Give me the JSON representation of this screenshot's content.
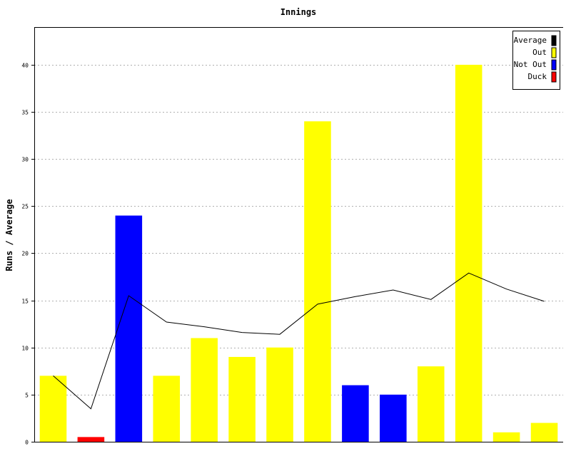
{
  "chart_data": {
    "type": "bar",
    "title": "Innings",
    "xlabel": "",
    "ylabel": "Runs / Average",
    "ylim": [
      0,
      44
    ],
    "yticks": [
      0,
      5,
      10,
      15,
      20,
      25,
      30,
      35,
      40
    ],
    "grid": true,
    "legend_position": "top-right",
    "bars": [
      {
        "value": 7,
        "type": "Out"
      },
      {
        "value": 0.5,
        "type": "Duck"
      },
      {
        "value": 24,
        "type": "Not Out"
      },
      {
        "value": 7,
        "type": "Out"
      },
      {
        "value": 11,
        "type": "Out"
      },
      {
        "value": 9,
        "type": "Out"
      },
      {
        "value": 10,
        "type": "Out"
      },
      {
        "value": 34,
        "type": "Out"
      },
      {
        "value": 6,
        "type": "Not Out"
      },
      {
        "value": 5,
        "type": "Not Out"
      },
      {
        "value": 8,
        "type": "Out"
      },
      {
        "value": 40,
        "type": "Out"
      },
      {
        "value": 1,
        "type": "Out"
      },
      {
        "value": 2,
        "type": "Out"
      }
    ],
    "average": [
      7.0,
      3.5,
      15.5,
      12.7,
      12.2,
      11.6,
      11.4,
      14.6,
      15.4,
      16.1,
      15.1,
      17.9,
      16.2,
      14.9
    ],
    "legend": [
      {
        "label": "Average",
        "color": "#000000"
      },
      {
        "label": "Out",
        "color": "#ffff00"
      },
      {
        "label": "Not Out",
        "color": "#0000ff"
      },
      {
        "label": "Duck",
        "color": "#ff0000"
      }
    ],
    "colors": {
      "Out": "#ffff00",
      "Not Out": "#0000ff",
      "Duck": "#ff0000",
      "Average": "#000000"
    }
  }
}
